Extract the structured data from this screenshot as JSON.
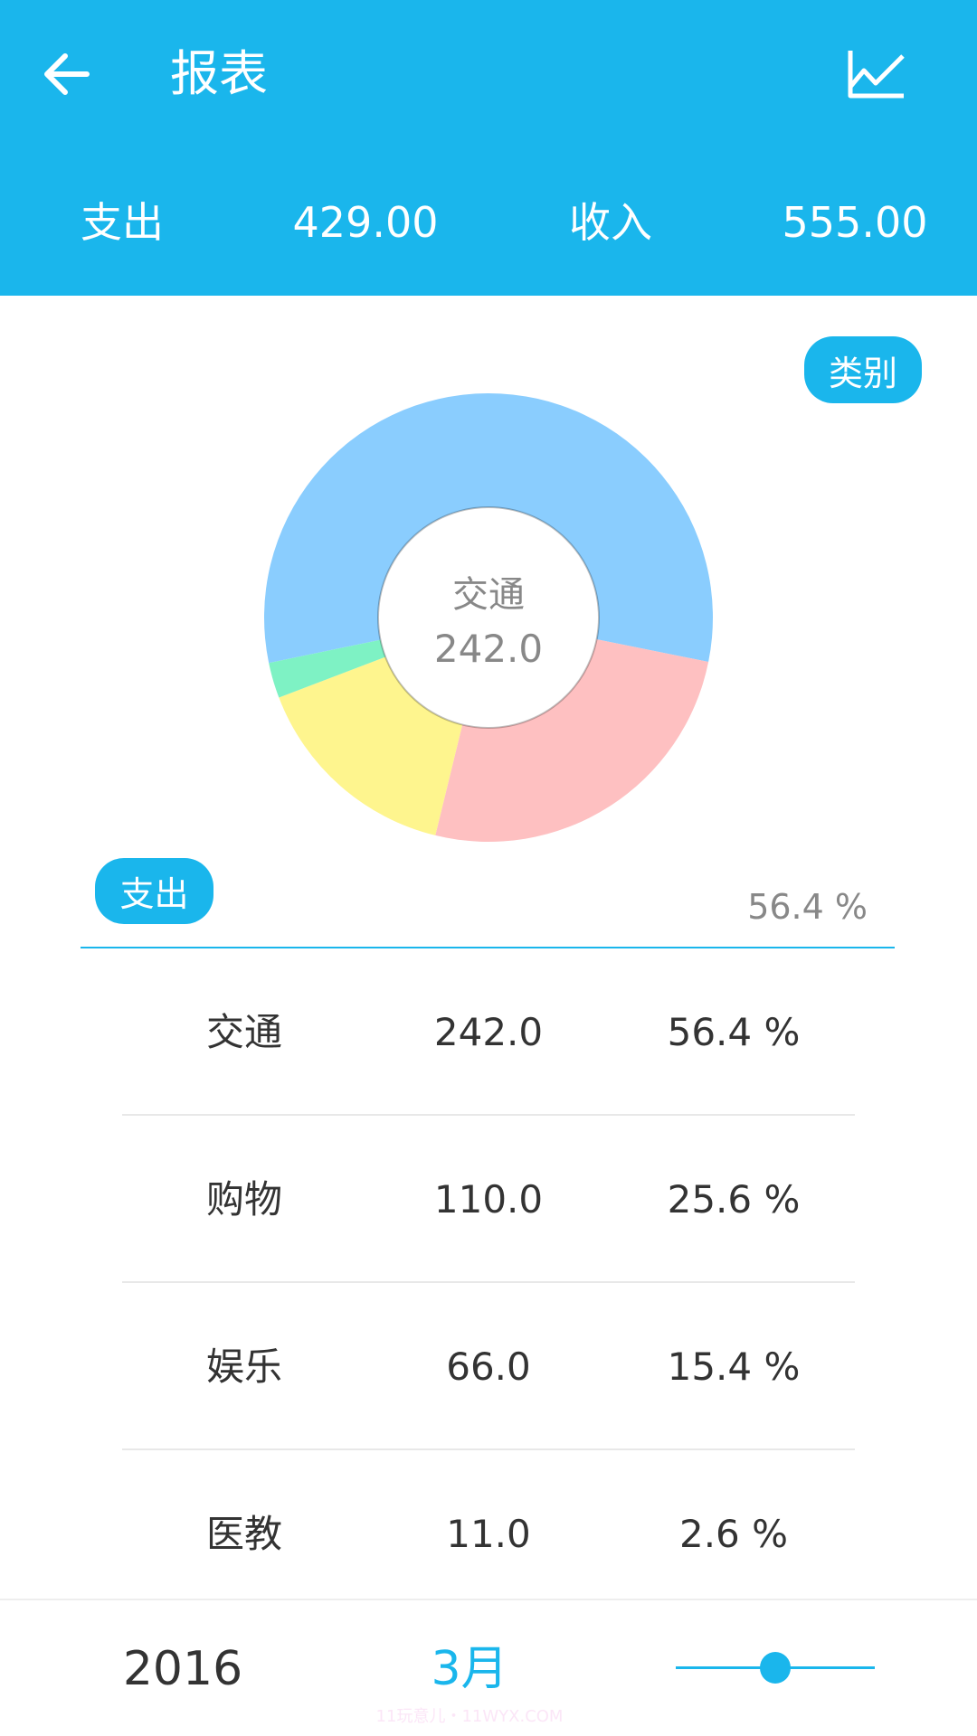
{
  "header": {
    "title": "报表",
    "back_icon": "arrow-left-icon",
    "chart_icon": "line-chart-icon",
    "expense_label": "支出",
    "expense_total": "429.00",
    "income_label": "收入",
    "income_total": "555.00"
  },
  "category_button": "类别",
  "type_tag": "支出",
  "selected_percent": "56.4 %",
  "center": {
    "label": "交通",
    "value": "242.0"
  },
  "chart_data": {
    "type": "pie",
    "categories": [
      "交通",
      "购物",
      "娱乐",
      "医教"
    ],
    "values": [
      242.0,
      110.0,
      66.0,
      11.0
    ],
    "percents": [
      56.4,
      25.6,
      15.4,
      2.6
    ],
    "colors": [
      "#8ACDFE",
      "#FEC0C1",
      "#FEF58E",
      "#7EF2C4"
    ],
    "donut": true
  },
  "table": [
    {
      "name": "交通",
      "amount": "242.0",
      "percent": "56.4 %"
    },
    {
      "name": "购物",
      "amount": "110.0",
      "percent": "25.6 %"
    },
    {
      "name": "娱乐",
      "amount": "66.0",
      "percent": "15.4 %"
    },
    {
      "name": "医教",
      "amount": "11.0",
      "percent": "2.6 %"
    }
  ],
  "footer": {
    "year": "2016",
    "month": "3月",
    "watermark": "11玩意儿・11WYX.COM",
    "slider_value": 0.5
  },
  "colors": {
    "accent": "#1AB6EC"
  }
}
